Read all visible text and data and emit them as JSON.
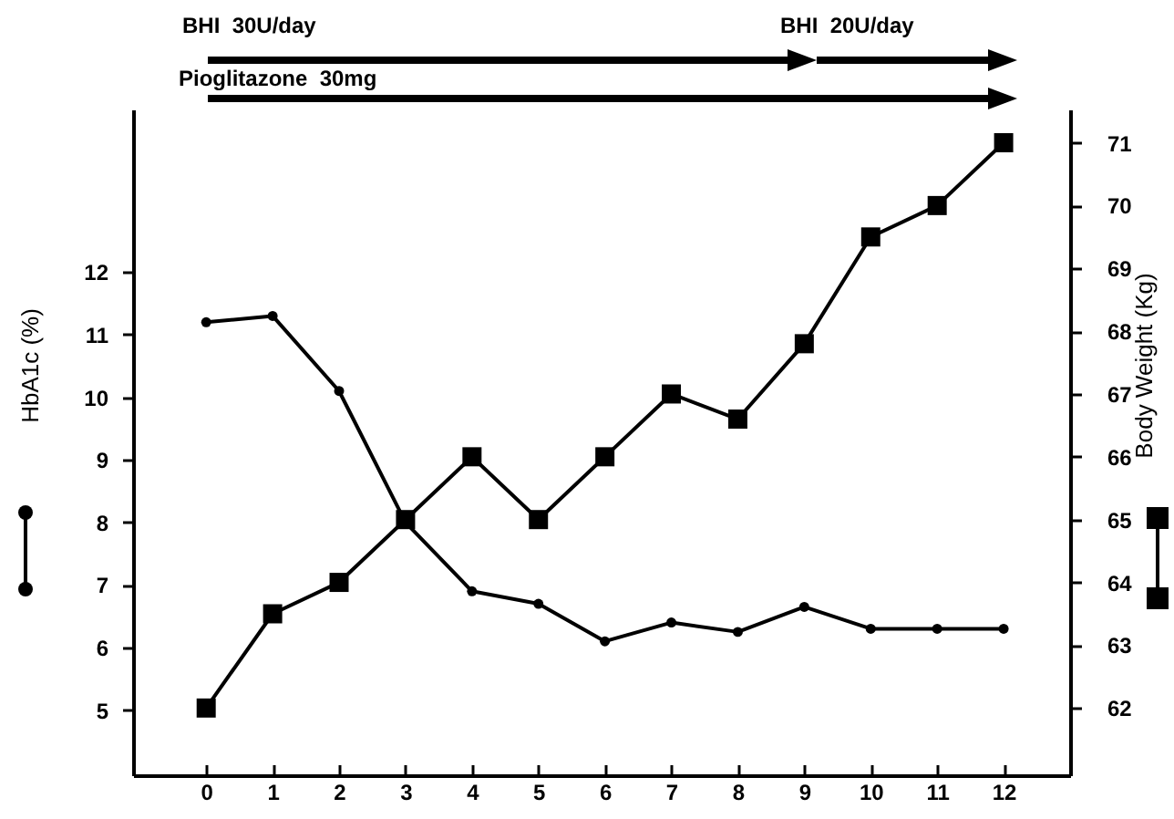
{
  "chart_data": {
    "type": "line",
    "ylabel": "HbA1c (%)",
    "y2label": "Body Weight (Kg)",
    "x": [
      0,
      1,
      2,
      3,
      4,
      5,
      6,
      7,
      8,
      9,
      10,
      11,
      12
    ],
    "xlim": [
      -1.1,
      13
    ],
    "xticks": [
      0,
      1,
      2,
      3,
      4,
      5,
      6,
      7,
      8,
      9,
      10,
      11,
      12
    ],
    "ylim": [
      3.96,
      14.6
    ],
    "yticks": [
      5,
      6,
      7,
      8,
      9,
      10,
      11,
      12
    ],
    "y2lim": [
      60.93,
      71.53
    ],
    "y2ticks": [
      62,
      63,
      64,
      65,
      66,
      67,
      68,
      69,
      70,
      71
    ],
    "series": [
      {
        "color": "#000000",
        "marker": "circle",
        "values": [
          11.2,
          11.3,
          10.1,
          8.0,
          6.9,
          6.7,
          6.1,
          6.4,
          6.25,
          6.65,
          6.3,
          6.3,
          6.3
        ]
      },
      {
        "color": "#000000",
        "marker": "square",
        "axis": "y2",
        "values": [
          62,
          63.5,
          64,
          65,
          66,
          65,
          66,
          67,
          66.6,
          67.8,
          69.5,
          70,
          71
        ]
      }
    ],
    "annotations": [
      "BHI  30U/day",
      "BHI  20U/day",
      "Pioglitazone  30mg"
    ],
    "grid": false
  }
}
